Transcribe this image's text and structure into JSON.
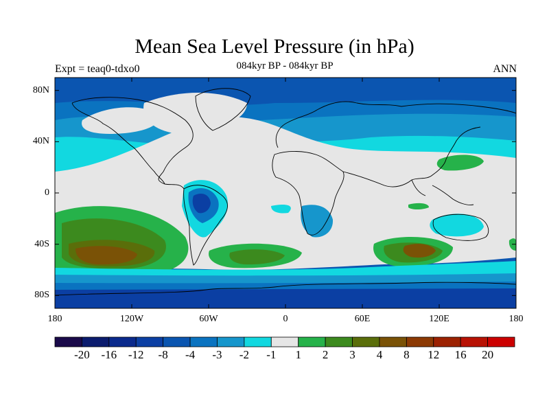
{
  "header": {
    "title": "Mean Sea Level Pressure (in hPa)",
    "subtitle": "084kyr BP - 084kyr BP",
    "experiment": "Expt = teaq0-tdxo0",
    "season": "ANN"
  },
  "map": {
    "lat_ticks": [
      {
        "label": "80N",
        "lat": 80
      },
      {
        "label": "40N",
        "lat": 40
      },
      {
        "label": "0",
        "lat": 0
      },
      {
        "label": "40S",
        "lat": -40
      },
      {
        "label": "80S",
        "lat": -80
      }
    ],
    "lon_ticks": [
      {
        "label": "180",
        "lon": -180
      },
      {
        "label": "120W",
        "lon": -120
      },
      {
        "label": "60W",
        "lon": -60
      },
      {
        "label": "0",
        "lon": 0
      },
      {
        "label": "60E",
        "lon": 60
      },
      {
        "label": "120E",
        "lon": 120
      },
      {
        "label": "180",
        "lon": 180
      }
    ],
    "lat_range": [
      -90,
      90
    ],
    "lon_range": [
      -180,
      180
    ]
  },
  "colorbar": {
    "colors": [
      "#1a0a4a",
      "#0b1c6e",
      "#0a2a8c",
      "#0b3fa3",
      "#0a55b0",
      "#0a73c0",
      "#1696cc",
      "#12d8e0",
      "#e6e6e6",
      "#26b24a",
      "#3c8a1e",
      "#5a6e0a",
      "#7a5206",
      "#8c3a04",
      "#9c2202",
      "#b81204",
      "#cc0000"
    ],
    "labels": [
      "-20",
      "-16",
      "-12",
      "-8",
      "-4",
      "-3",
      "-2",
      "-1",
      "1",
      "2",
      "3",
      "4",
      "8",
      "12",
      "16",
      "20"
    ]
  }
}
